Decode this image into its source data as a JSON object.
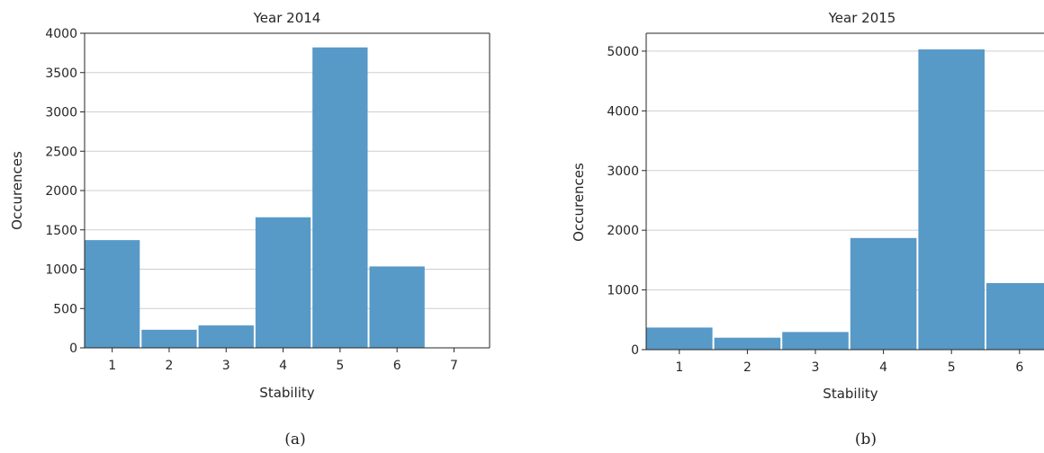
{
  "panels": [
    {
      "caption": "(a)",
      "chart_data": {
        "type": "bar",
        "title": "Year 2014",
        "xlabel": "Stability",
        "ylabel": "Occurences",
        "categories": [
          "1",
          "2",
          "3",
          "4",
          "5",
          "6",
          "7"
        ],
        "values": [
          1370,
          230,
          285,
          1660,
          3820,
          1035,
          0
        ],
        "ylim": [
          0,
          4000
        ],
        "yticks": [
          "0",
          "500",
          "1000",
          "1500",
          "2000",
          "2500",
          "3000",
          "3500",
          "4000"
        ],
        "grid": "horizontal",
        "bar_color": "#5799c7"
      }
    },
    {
      "caption": "(b)",
      "chart_data": {
        "type": "bar",
        "title": "Year 2015",
        "xlabel": "Stability",
        "ylabel": "Occurences",
        "categories": [
          "1",
          "2",
          "3",
          "4",
          "5",
          "6"
        ],
        "values": [
          370,
          200,
          295,
          1870,
          5030,
          1115
        ],
        "ylim": [
          0,
          5300
        ],
        "yticks": [
          "0",
          "1000",
          "2000",
          "3000",
          "4000",
          "5000"
        ],
        "grid": "horizontal",
        "bar_color": "#5799c7"
      }
    }
  ]
}
